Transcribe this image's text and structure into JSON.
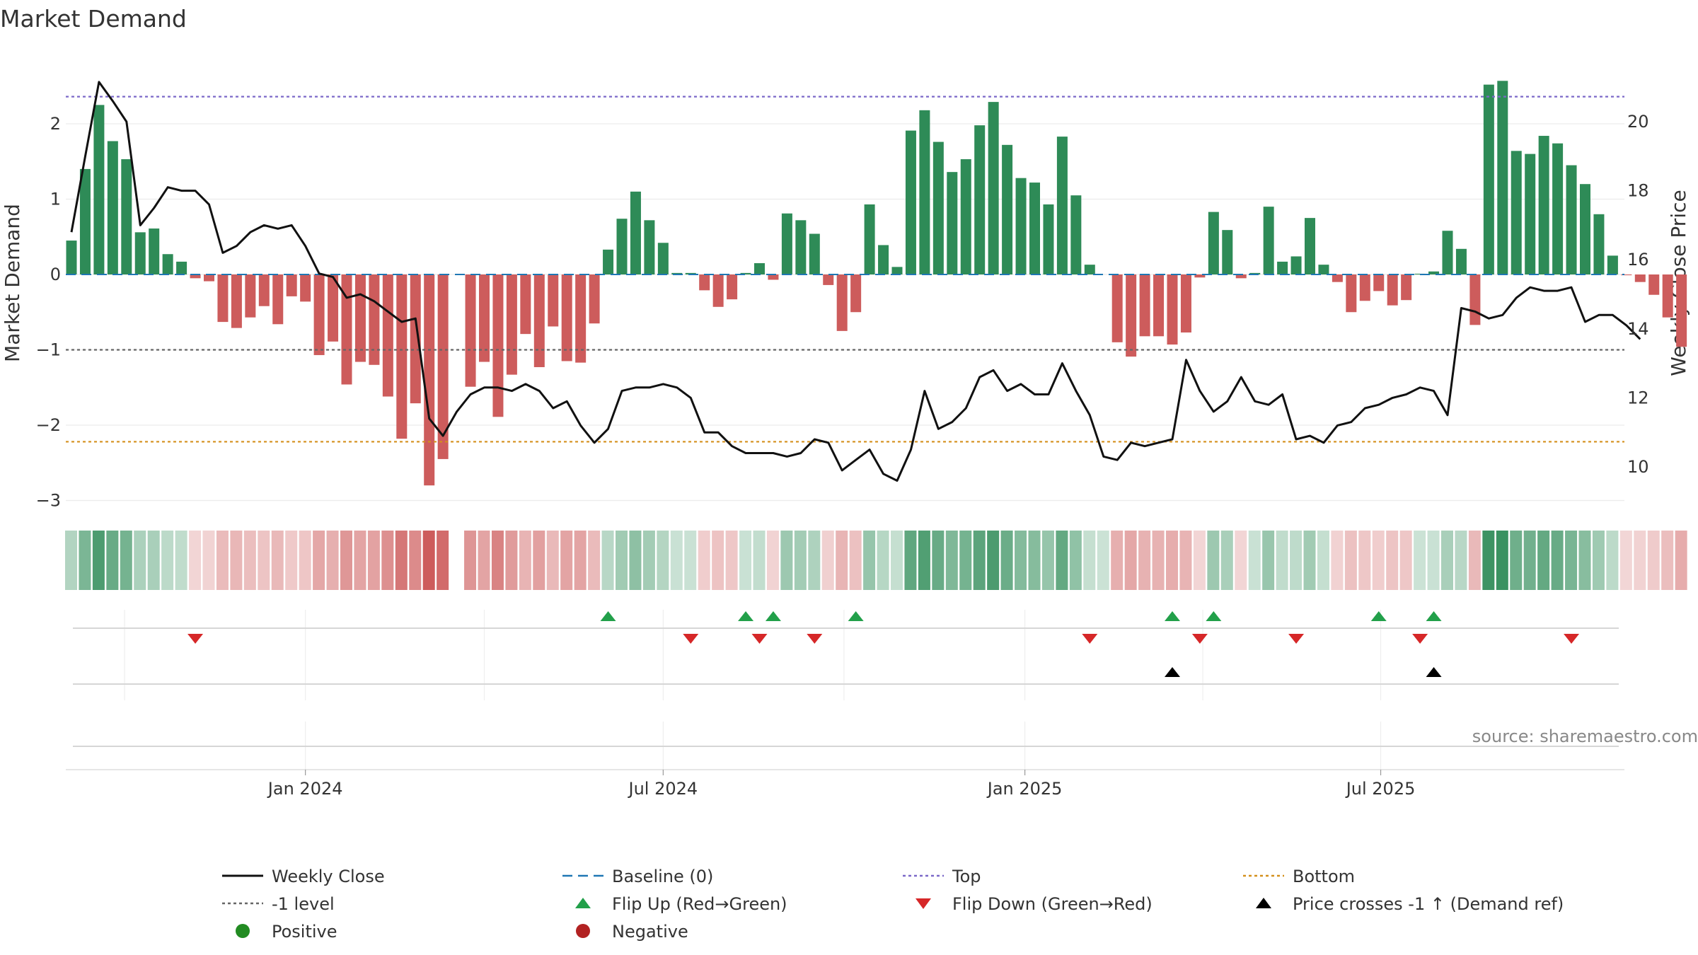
{
  "chart_data": {
    "type": "bar",
    "title": "Market Demand",
    "ylabel": "Market Demand",
    "y2label": "Weekly Close Price",
    "ylim": [
      -3.2,
      2.9
    ],
    "y2lim": [
      8.9,
      23.3
    ],
    "yticks": [
      "2",
      "1",
      "0",
      "−1",
      "−2",
      "−3"
    ],
    "y2ticks": [
      "20",
      "18",
      "16",
      "14",
      "12",
      "10"
    ],
    "x_start": "2023-09-04",
    "x_step_days": 7,
    "x_ticks": [
      {
        "date": "2024-01-01",
        "label": "Jan 2024"
      },
      {
        "date": "2024-07-01",
        "label": "Jul 2024"
      },
      {
        "date": "2025-01-01",
        "label": "Jan 2025"
      },
      {
        "date": "2025-07-01",
        "label": "Jul 2025"
      }
    ],
    "reference_lines": {
      "top": 2.36,
      "minus_one": -1.0,
      "bottom": -2.22,
      "baseline": 0
    },
    "series": [
      {
        "name": "Market Demand",
        "values": [
          0.45,
          1.4,
          2.25,
          1.77,
          1.53,
          0.56,
          0.61,
          0.27,
          0.17,
          -0.05,
          -0.09,
          -0.63,
          -0.71,
          -0.57,
          -0.42,
          -0.66,
          -0.29,
          -0.36,
          -1.07,
          -0.89,
          -1.46,
          -1.16,
          -1.2,
          -1.62,
          -2.18,
          -1.71,
          -2.8,
          -2.45,
          null,
          -1.49,
          -1.16,
          -1.89,
          -1.33,
          -0.79,
          -1.23,
          -0.69,
          -1.15,
          -1.17,
          -0.65,
          0.33,
          0.74,
          1.1,
          0.72,
          0.42,
          0.02,
          0.02,
          -0.21,
          -0.43,
          -0.33,
          0.02,
          0.15,
          -0.07,
          0.81,
          0.72,
          0.54,
          -0.14,
          -0.75,
          -0.5,
          0.93,
          0.39,
          0.1,
          1.91,
          2.18,
          1.76,
          1.36,
          1.53,
          1.98,
          2.29,
          1.72,
          1.28,
          1.22,
          0.93,
          1.83,
          1.05,
          0.13,
          0.0,
          -0.9,
          -1.09,
          -0.82,
          -0.82,
          -0.93,
          -0.77,
          -0.04,
          0.83,
          0.59,
          -0.05,
          0.02,
          0.9,
          0.17,
          0.24,
          0.75,
          0.13,
          -0.1,
          -0.5,
          -0.35,
          -0.22,
          -0.41,
          -0.34,
          0.01,
          0.04,
          0.58,
          0.34,
          -0.67,
          2.52,
          2.57,
          1.64,
          1.6,
          1.84,
          1.74,
          1.45,
          1.2,
          0.8,
          0.25,
          -0.01,
          -0.1,
          -0.27,
          -0.57,
          -0.96
        ]
      },
      {
        "name": "Weekly Close",
        "values": [
          16.8,
          19.0,
          21.15,
          20.6,
          20.0,
          17.0,
          17.5,
          18.1,
          18.0,
          18.0,
          17.6,
          16.2,
          16.4,
          16.8,
          17.0,
          16.9,
          17.0,
          16.4,
          15.6,
          15.5,
          14.9,
          15.0,
          14.8,
          14.5,
          14.2,
          14.3,
          11.4,
          10.9,
          11.6,
          12.1,
          12.3,
          12.3,
          12.2,
          12.4,
          12.2,
          11.7,
          11.9,
          11.2,
          10.7,
          11.1,
          12.2,
          12.3,
          12.3,
          12.4,
          12.3,
          12.0,
          11.0,
          11.0,
          10.6,
          10.4,
          10.4,
          10.4,
          10.3,
          10.4,
          10.8,
          10.7,
          9.9,
          10.2,
          10.5,
          9.8,
          9.6,
          10.5,
          12.2,
          11.1,
          11.3,
          11.7,
          12.6,
          12.8,
          12.2,
          12.4,
          12.1,
          12.1,
          13.0,
          12.2,
          11.5,
          10.3,
          10.2,
          10.7,
          10.6,
          10.7,
          10.8,
          13.1,
          12.2,
          11.6,
          11.9,
          12.6,
          11.9,
          11.8,
          12.1,
          10.8,
          10.9,
          10.7,
          11.2,
          11.3,
          11.7,
          11.8,
          12.0,
          12.1,
          12.3,
          12.2,
          11.5,
          14.6,
          14.5,
          14.3,
          14.4,
          14.9,
          15.2,
          15.1,
          15.1,
          15.2,
          14.2,
          14.4,
          14.4,
          14.1,
          13.7
        ]
      }
    ],
    "band_rows": 3,
    "flip_up_weeks": [
      39,
      49,
      51,
      57,
      80,
      83,
      95,
      99
    ],
    "flip_down_weeks": [
      9,
      45,
      50,
      54,
      74,
      82,
      89,
      98,
      109
    ],
    "price_cross_weeks": [
      80,
      99
    ],
    "source_note": "source: sharemaestro.com",
    "legend": [
      {
        "key": "weekly_close",
        "label": "Weekly Close"
      },
      {
        "key": "baseline",
        "label": "Baseline (0)"
      },
      {
        "key": "top",
        "label": "Top"
      },
      {
        "key": "bottom",
        "label": "Bottom"
      },
      {
        "key": "minus_one",
        "label": "-1 level"
      },
      {
        "key": "flip_up",
        "label": "Flip Up (Red→Green)"
      },
      {
        "key": "flip_down",
        "label": "Flip Down (Green→Red)"
      },
      {
        "key": "price_cross",
        "label": "Price crosses -1 ↑ (Demand ref)"
      },
      {
        "key": "positive",
        "label": "Positive"
      },
      {
        "key": "negative",
        "label": "Negative"
      }
    ],
    "colors": {
      "positive": "#2e8b57",
      "negative": "#cd5c5c",
      "price": "#111111",
      "baseline": "#1f77b4",
      "top": "#7b68c8",
      "bottom": "#d4901c",
      "minus_one": "#666666",
      "flip_up": "#22a04a",
      "flip_down": "#d62728",
      "price_cross": "#000000",
      "positive_dot": "#228b22",
      "negative_dot": "#b22222"
    }
  }
}
